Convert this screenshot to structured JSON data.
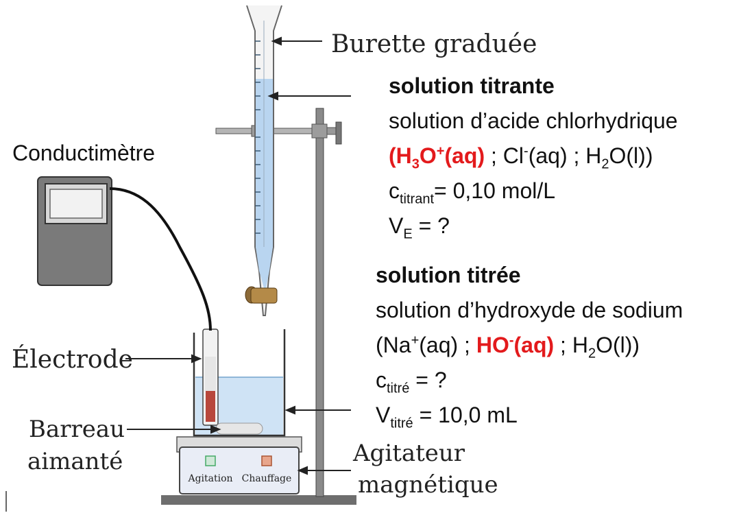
{
  "labels": {
    "burette": "Burette graduée",
    "conductimeter": "Conductimètre",
    "electrode": "Électrode",
    "stir_bar_line1": "Barreau",
    "stir_bar_line2": "aimanté",
    "stirrer_line1": "Agitateur",
    "stirrer_line2": "magnétique",
    "button_agitation": "Agitation",
    "button_heating": "Chauffage"
  },
  "titrant": {
    "heading": "solution titrante",
    "name": "solution d’acide chlorhydrique",
    "ion_open": "(",
    "ion_main": "H",
    "ion_sub": "3",
    "ion_o": "O",
    "ion_sup": "+",
    "ion_aq": "(aq)",
    "rest_a": " ; Cl",
    "rest_sup": "-",
    "rest_b": "(aq) ; H",
    "rest_sub": "2",
    "rest_c": "O(l))",
    "conc_symbol": "c",
    "conc_sub": "titrant",
    "conc_value": "= 0,10 mol/L",
    "vol_symbol": "V",
    "vol_sub": "E",
    "vol_value": " = ?"
  },
  "titre": {
    "heading": "solution titrée",
    "name": "solution d’hydroxyde de sodium",
    "line_a": "(Na",
    "line_sup1": "+",
    "line_b": "(aq) ; ",
    "ion_main": "HO",
    "ion_sup": "-",
    "ion_aq": "(aq)",
    "line_c": " ; H",
    "line_sub": "2",
    "line_d": "O(l))",
    "conc_symbol": "c",
    "conc_sub": "titré",
    "conc_value": " = ?",
    "vol_symbol": "V",
    "vol_sub": "titré",
    "vol_value": " = 10,0 mL"
  },
  "colors": {
    "highlight": "#e31a1c",
    "solution": "#cfe3f5",
    "liquid_in_electrode": "#b8473c"
  }
}
